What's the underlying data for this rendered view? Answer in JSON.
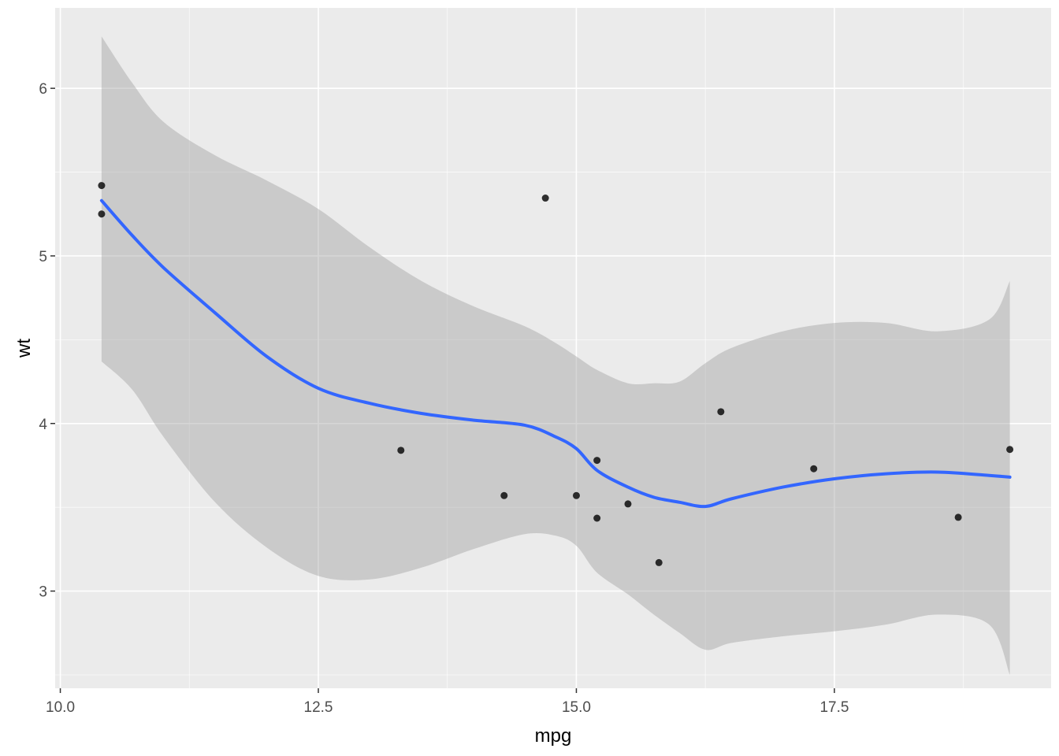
{
  "chart_data": {
    "type": "scatter",
    "title": "",
    "xlabel": "mpg",
    "ylabel": "wt",
    "xlim": [
      9.95,
      19.6
    ],
    "ylim": [
      2.42,
      6.48
    ],
    "x_ticks": [
      {
        "value": 10.0,
        "label": "10.0"
      },
      {
        "value": 12.5,
        "label": "12.5"
      },
      {
        "value": 15.0,
        "label": "15.0"
      },
      {
        "value": 17.5,
        "label": "17.5"
      }
    ],
    "y_ticks": [
      {
        "value": 3,
        "label": "3"
      },
      {
        "value": 4,
        "label": "4"
      },
      {
        "value": 5,
        "label": "5"
      },
      {
        "value": 6,
        "label": "6"
      }
    ],
    "grid": true,
    "points": [
      {
        "x": 10.4,
        "y": 5.42
      },
      {
        "x": 10.4,
        "y": 5.25
      },
      {
        "x": 13.3,
        "y": 3.84
      },
      {
        "x": 14.3,
        "y": 3.57
      },
      {
        "x": 14.7,
        "y": 5.345
      },
      {
        "x": 15.0,
        "y": 3.57
      },
      {
        "x": 15.2,
        "y": 3.78
      },
      {
        "x": 15.2,
        "y": 3.435
      },
      {
        "x": 15.5,
        "y": 3.52
      },
      {
        "x": 15.8,
        "y": 3.17
      },
      {
        "x": 16.4,
        "y": 4.07
      },
      {
        "x": 17.3,
        "y": 3.73
      },
      {
        "x": 18.7,
        "y": 3.44
      },
      {
        "x": 19.2,
        "y": 3.845
      }
    ],
    "smooth": {
      "method": "loess",
      "line_color": "#3366ff",
      "band_color": "#999999",
      "x": [
        10.4,
        10.7,
        11.0,
        11.5,
        12.0,
        12.5,
        13.0,
        13.5,
        14.0,
        14.5,
        14.8,
        15.0,
        15.2,
        15.5,
        15.75,
        16.0,
        16.25,
        16.5,
        17.0,
        17.5,
        18.0,
        18.5,
        19.0,
        19.2
      ],
      "fit": [
        5.33,
        5.12,
        4.93,
        4.66,
        4.4,
        4.21,
        4.12,
        4.06,
        4.02,
        3.99,
        3.92,
        3.85,
        3.72,
        3.62,
        3.56,
        3.53,
        3.505,
        3.55,
        3.62,
        3.67,
        3.7,
        3.71,
        3.69,
        3.68
      ],
      "upper": [
        6.31,
        6.03,
        5.8,
        5.6,
        5.45,
        5.28,
        5.05,
        4.85,
        4.7,
        4.58,
        4.48,
        4.4,
        4.32,
        4.24,
        4.24,
        4.25,
        4.36,
        4.45,
        4.55,
        4.6,
        4.6,
        4.55,
        4.62,
        4.85
      ],
      "lower": [
        4.37,
        4.2,
        3.92,
        3.53,
        3.26,
        3.09,
        3.07,
        3.14,
        3.25,
        3.34,
        3.33,
        3.27,
        3.11,
        2.98,
        2.86,
        2.75,
        2.65,
        2.69,
        2.73,
        2.76,
        2.8,
        2.86,
        2.8,
        2.5
      ]
    },
    "colors": {
      "panel_background": "#ebebeb",
      "grid_major": "#ffffff",
      "point": "#000000",
      "tick_text": "#4d4d4d"
    }
  }
}
